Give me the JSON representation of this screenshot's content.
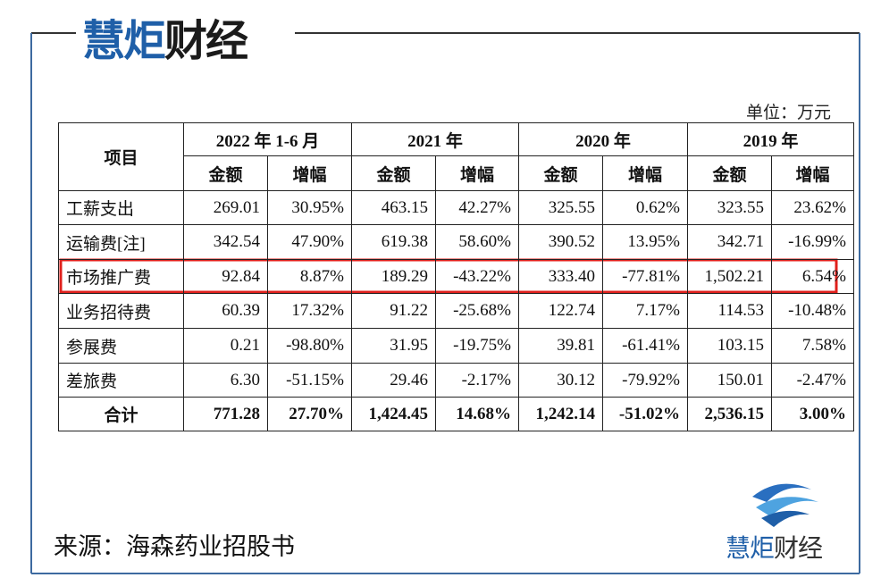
{
  "header": {
    "brand_blue": "慧炬",
    "brand_dark": "财经"
  },
  "unit": "单位：万元",
  "table": {
    "item_header": "项目",
    "periods": [
      "2022 年 1-6 月",
      "2021 年",
      "2020 年",
      "2019 年"
    ],
    "subheaders": [
      "金额",
      "增幅",
      "金额",
      "增幅",
      "金额",
      "增幅",
      "金额",
      "增幅"
    ],
    "rows": [
      [
        "工薪支出",
        "269.01",
        "30.95%",
        "463.15",
        "42.27%",
        "325.55",
        "0.62%",
        "323.55",
        "23.62%"
      ],
      [
        "运输费[注]",
        "342.54",
        "47.90%",
        "619.38",
        "58.60%",
        "390.52",
        "13.95%",
        "342.71",
        "-16.99%"
      ],
      [
        "市场推广费",
        "92.84",
        "8.87%",
        "189.29",
        "-43.22%",
        "333.40",
        "-77.81%",
        "1,502.21",
        "6.54%"
      ],
      [
        "业务招待费",
        "60.39",
        "17.32%",
        "91.22",
        "-25.68%",
        "122.74",
        "7.17%",
        "114.53",
        "-10.48%"
      ],
      [
        "参展费",
        "0.21",
        "-98.80%",
        "31.95",
        "-19.75%",
        "39.81",
        "-61.41%",
        "103.15",
        "7.58%"
      ],
      [
        "差旅费",
        "6.30",
        "-51.15%",
        "29.46",
        "-2.17%",
        "30.12",
        "-79.92%",
        "150.01",
        "-2.47%"
      ],
      [
        "合计",
        "771.28",
        "27.70%",
        "1,424.45",
        "14.68%",
        "1,242.14",
        "-51.02%",
        "2,536.15",
        "3.00%"
      ]
    ]
  },
  "source": "来源：海森药业招股书",
  "footer_logo": {
    "brand_blue": "慧炬",
    "brand_dark": "财经"
  }
}
